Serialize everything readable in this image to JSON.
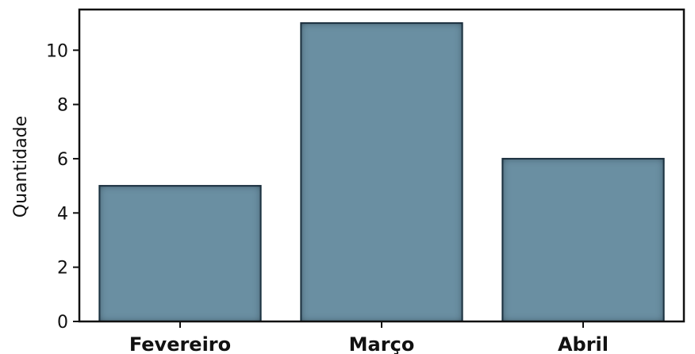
{
  "chart_data": {
    "type": "bar",
    "title": "",
    "categories": [
      "Fevereiro",
      "Março",
      "Abril"
    ],
    "values": [
      5,
      11,
      6
    ],
    "xlabel": "",
    "ylabel": "Quantidade",
    "ylim": [
      0,
      11.5
    ],
    "yticks": [
      0,
      2,
      4,
      6,
      8,
      10
    ],
    "bar_color": "#6a8fa2",
    "bar_edge_color": "#243746",
    "grid": false,
    "legend": "none"
  }
}
